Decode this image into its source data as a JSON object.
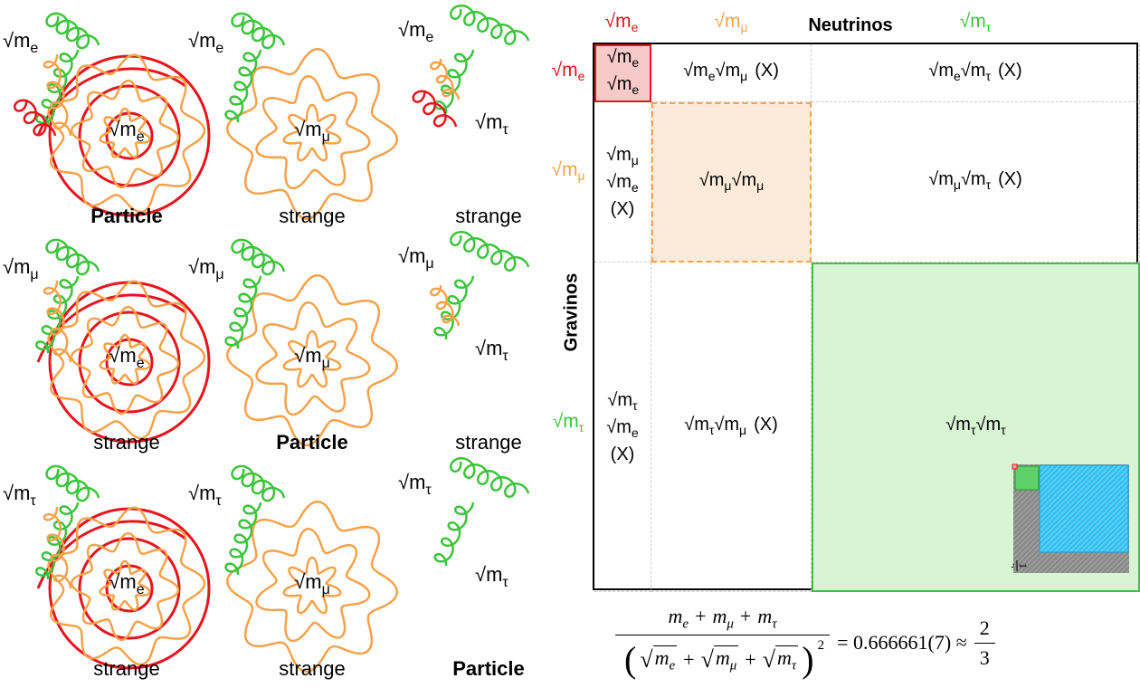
{
  "left": {
    "panels": [
      {
        "label": {
          "root": "√m",
          "sub": "e"
        },
        "center": {
          "root": "√m",
          "sub": "e"
        },
        "caption": "Particle",
        "caption_bold": true
      },
      {
        "label": {
          "root": "√m",
          "sub": "e"
        },
        "center": {
          "root": "√m",
          "sub": "μ"
        },
        "caption": "strange",
        "caption_bold": false
      },
      {
        "label": {
          "root": "√m",
          "sub": "e"
        },
        "right": {
          "root": "√m",
          "sub": "τ"
        },
        "caption": "strange",
        "caption_bold": false
      },
      {
        "label": {
          "root": "√m",
          "sub": "μ"
        },
        "center": {
          "root": "√m",
          "sub": "e"
        },
        "caption": "strange",
        "caption_bold": false
      },
      {
        "label": {
          "root": "√m",
          "sub": "μ"
        },
        "center": {
          "root": "√m",
          "sub": "μ"
        },
        "caption": "Particle",
        "caption_bold": true
      },
      {
        "label": {
          "root": "√m",
          "sub": "μ"
        },
        "right": {
          "root": "√m",
          "sub": "τ"
        },
        "caption": "strange",
        "caption_bold": false
      },
      {
        "label": {
          "root": "√m",
          "sub": "τ"
        },
        "center": {
          "root": "√m",
          "sub": "e"
        },
        "caption": "strange",
        "caption_bold": false
      },
      {
        "label": {
          "root": "√m",
          "sub": "τ"
        },
        "center": {
          "root": "√m",
          "sub": "μ"
        },
        "caption": "strange",
        "caption_bold": false
      },
      {
        "label": {
          "root": "√m",
          "sub": "τ"
        },
        "right": {
          "root": "√m",
          "sub": "τ"
        },
        "caption": "Particle",
        "caption_bold": true
      }
    ]
  },
  "matrix": {
    "columns_title": "Neutrinos",
    "rows_title": "Gravinos",
    "column_labels": [
      {
        "root": "√m",
        "sub": "e",
        "color": "#e8141c"
      },
      {
        "root": "√m",
        "sub": "μ",
        "color": "#f7a24b"
      },
      {
        "root": "√m",
        "sub": "τ",
        "color": "#3cc43c"
      }
    ],
    "row_labels": [
      {
        "root": "√m",
        "sub": "e",
        "color": "#e8141c"
      },
      {
        "root": "√m",
        "sub": "μ",
        "color": "#f7a24b"
      },
      {
        "root": "√m",
        "sub": "τ",
        "color": "#3cc43c"
      }
    ],
    "cells": [
      [
        {
          "lines": [
            [
              {
                "root": "√m",
                "sub": "e"
              }
            ],
            [
              {
                "root": "√m",
                "sub": "e"
              }
            ]
          ]
        },
        {
          "lines": [
            [
              {
                "root": "√m",
                "sub": "e"
              },
              {
                "root": "√m",
                "sub": "μ"
              },
              "(X)"
            ]
          ]
        },
        {
          "lines": [
            [
              {
                "root": "√m",
                "sub": "e"
              },
              {
                "root": "√m",
                "sub": "τ"
              },
              "(X)"
            ]
          ]
        }
      ],
      [
        {
          "lines": [
            [
              {
                "root": "√m",
                "sub": "μ"
              }
            ],
            [
              {
                "root": "√m",
                "sub": "e"
              }
            ],
            [
              "(X)"
            ]
          ]
        },
        {
          "lines": [
            [
              {
                "root": "√m",
                "sub": "μ"
              },
              {
                "root": "√m",
                "sub": "μ"
              }
            ]
          ]
        },
        {
          "lines": [
            [
              {
                "root": "√m",
                "sub": "μ"
              },
              {
                "root": "√m",
                "sub": "τ"
              },
              "(X)"
            ]
          ]
        }
      ],
      [
        {
          "lines": [
            [
              {
                "root": "√m",
                "sub": "τ"
              }
            ],
            [
              {
                "root": "√m",
                "sub": "e"
              }
            ],
            [
              "(X)"
            ]
          ]
        },
        {
          "lines": [
            [
              {
                "root": "√m",
                "sub": "τ"
              },
              {
                "root": "√m",
                "sub": "μ"
              },
              "(X)"
            ]
          ]
        },
        {
          "lines": [
            [
              {
                "root": "√m",
                "sub": "τ"
              },
              {
                "root": "√m",
                "sub": "τ"
              }
            ]
          ]
        }
      ]
    ],
    "inset": {
      "fraction": {
        "num": "1",
        "den": "3"
      }
    }
  },
  "formula": {
    "numerator": [
      {
        "var": "m",
        "sub": "e"
      },
      "+",
      {
        "var": "m",
        "sub": "μ"
      },
      "+",
      {
        "var": "m",
        "sub": "τ"
      }
    ],
    "denominator": {
      "open": "(",
      "radical": "√",
      "terms": [
        {
          "var": "m",
          "sub": "e"
        },
        "+",
        {
          "var": "m",
          "sub": "μ"
        },
        "+",
        {
          "var": "m",
          "sub": "τ"
        }
      ],
      "close": ")",
      "power": "2"
    },
    "result": "= 0.666661(7) ≈",
    "fraction": {
      "num": "2",
      "den": "3"
    }
  }
}
